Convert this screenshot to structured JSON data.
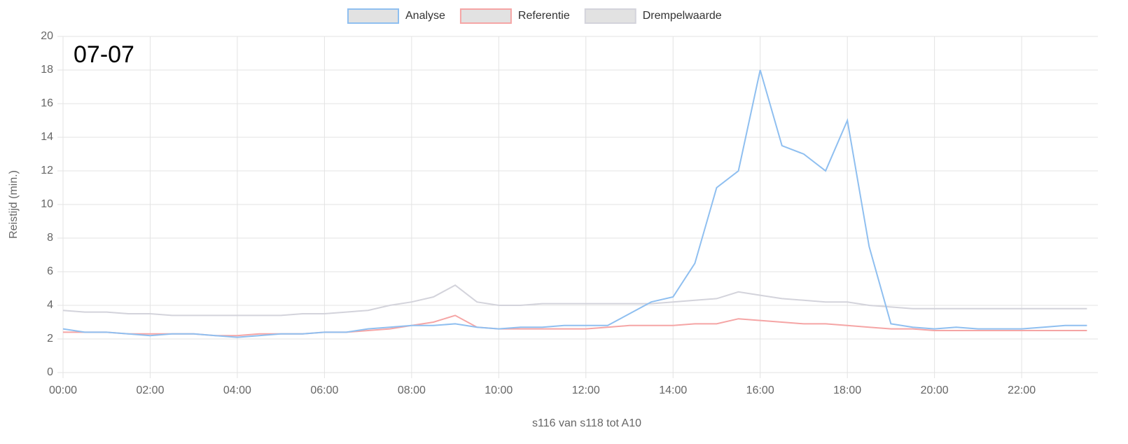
{
  "chart_data": {
    "type": "line",
    "annotation": "07-07",
    "xlabel": "s116 van s118 tot A10",
    "ylabel": "Reistijd (min.)",
    "x": [
      0,
      0.5,
      1,
      1.5,
      2,
      2.5,
      3,
      3.5,
      4,
      4.5,
      5,
      5.5,
      6,
      6.5,
      7,
      7.5,
      8,
      8.5,
      9,
      9.5,
      10,
      10.5,
      11,
      11.5,
      12,
      12.5,
      13,
      13.5,
      14,
      14.5,
      15,
      15.5,
      16,
      16.5,
      17,
      17.5,
      18,
      18.5,
      19,
      19.5,
      20,
      20.5,
      21,
      21.5,
      22,
      22.5,
      23,
      23.5
    ],
    "series": [
      {
        "name": "Analyse",
        "color": "#8fbff0",
        "values": [
          2.6,
          2.4,
          2.4,
          2.3,
          2.2,
          2.3,
          2.3,
          2.2,
          2.1,
          2.2,
          2.3,
          2.3,
          2.4,
          2.4,
          2.6,
          2.7,
          2.8,
          2.8,
          2.9,
          2.7,
          2.6,
          2.7,
          2.7,
          2.8,
          2.8,
          2.8,
          3.5,
          4.2,
          4.5,
          6.5,
          11,
          12,
          18,
          13.5,
          13,
          12,
          15,
          7.5,
          2.9,
          2.7,
          2.6,
          2.7,
          2.6,
          2.6,
          2.6,
          2.7,
          2.8,
          2.8
        ]
      },
      {
        "name": "Referentie",
        "color": "#f5a5a5",
        "values": [
          2.4,
          2.4,
          2.4,
          2.3,
          2.3,
          2.3,
          2.3,
          2.2,
          2.2,
          2.3,
          2.3,
          2.3,
          2.4,
          2.4,
          2.5,
          2.6,
          2.8,
          3.0,
          3.4,
          2.7,
          2.6,
          2.6,
          2.6,
          2.6,
          2.6,
          2.7,
          2.8,
          2.8,
          2.8,
          2.9,
          2.9,
          3.2,
          3.1,
          3.0,
          2.9,
          2.9,
          2.8,
          2.7,
          2.6,
          2.6,
          2.5,
          2.5,
          2.5,
          2.5,
          2.5,
          2.5,
          2.5,
          2.5
        ]
      },
      {
        "name": "Drempelwaarde",
        "color": "#d3d3db",
        "values": [
          3.7,
          3.6,
          3.6,
          3.5,
          3.5,
          3.4,
          3.4,
          3.4,
          3.4,
          3.4,
          3.4,
          3.5,
          3.5,
          3.6,
          3.7,
          4.0,
          4.2,
          4.5,
          5.2,
          4.2,
          4.0,
          4.0,
          4.1,
          4.1,
          4.1,
          4.1,
          4.1,
          4.1,
          4.2,
          4.3,
          4.4,
          4.8,
          4.6,
          4.4,
          4.3,
          4.2,
          4.2,
          4.0,
          3.9,
          3.8,
          3.8,
          3.8,
          3.8,
          3.8,
          3.8,
          3.8,
          3.8,
          3.8
        ]
      }
    ],
    "xlim": [
      0,
      23.75
    ],
    "xticks": [
      {
        "value": 0,
        "label": "00:00"
      },
      {
        "value": 2,
        "label": "02:00"
      },
      {
        "value": 4,
        "label": "04:00"
      },
      {
        "value": 6,
        "label": "06:00"
      },
      {
        "value": 8,
        "label": "08:00"
      },
      {
        "value": 10,
        "label": "10:00"
      },
      {
        "value": 12,
        "label": "12:00"
      },
      {
        "value": 14,
        "label": "14:00"
      },
      {
        "value": 16,
        "label": "16:00"
      },
      {
        "value": 18,
        "label": "18:00"
      },
      {
        "value": 20,
        "label": "20:00"
      },
      {
        "value": 22,
        "label": "22:00"
      }
    ],
    "ylim": [
      0,
      20
    ],
    "yticks": [
      0,
      2,
      4,
      6,
      8,
      10,
      12,
      14,
      16,
      18,
      20
    ],
    "grid": true,
    "legend": "top"
  }
}
